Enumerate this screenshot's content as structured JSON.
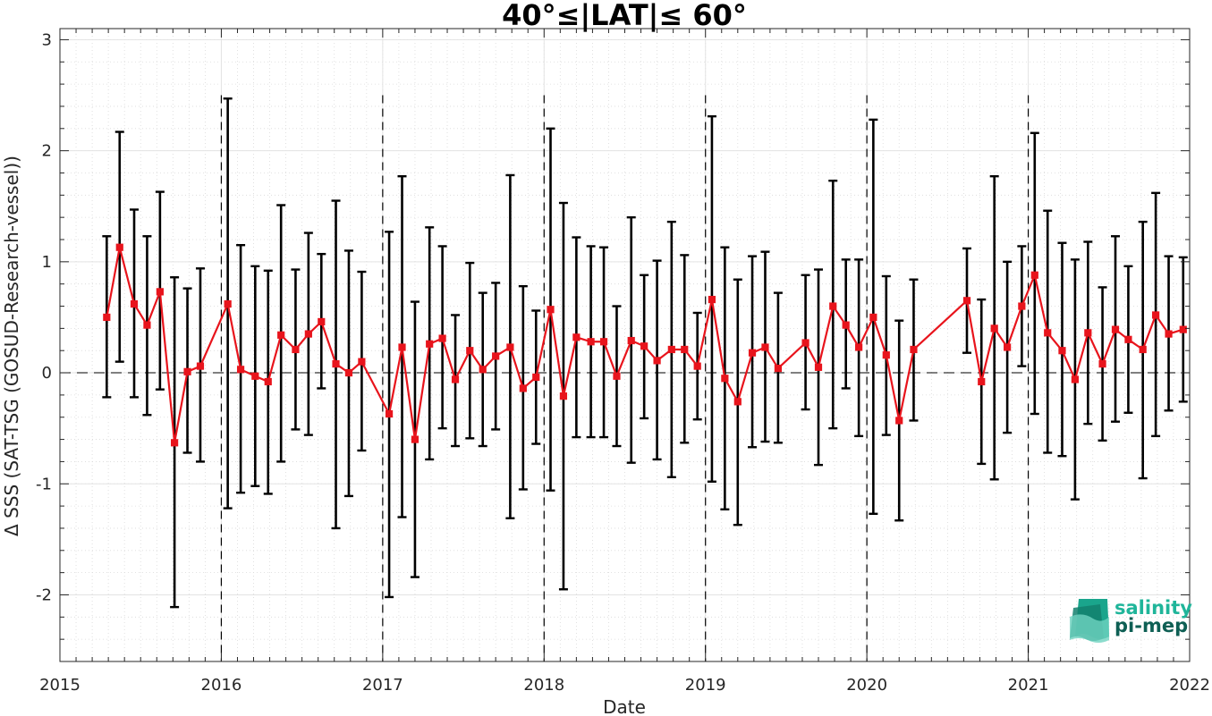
{
  "chart_data": {
    "type": "scatter",
    "title": "40°≤|LAT|≤ 60°",
    "xlabel": "Date",
    "ylabel": "Δ SSS (SAT-TSG (GOSUD-Research-vessel))",
    "xlim": [
      2015,
      2022
    ],
    "ylim": [
      -2.6,
      3.1
    ],
    "x_ticks": [
      "2015",
      "2016",
      "2017",
      "2018",
      "2019",
      "2020",
      "2021",
      "2022"
    ],
    "y_ticks": [
      "-2",
      "-1",
      "0",
      "1",
      "2",
      "3"
    ],
    "grid": true,
    "zero_line": true,
    "year_separators": [
      2016,
      2017,
      2018,
      2019,
      2020,
      2021
    ],
    "series": [
      {
        "color": "#e8141c",
        "marker": "square",
        "x": [
          2015.29,
          2015.37,
          2015.46,
          2015.54,
          2015.62,
          2015.71,
          2015.79,
          2015.87,
          2016.04,
          2016.12,
          2016.21,
          2016.29,
          2016.37,
          2016.46,
          2016.54,
          2016.62,
          2016.71,
          2016.79,
          2016.87,
          2017.04,
          2017.12,
          2017.2,
          2017.29,
          2017.37,
          2017.45,
          2017.54,
          2017.62,
          2017.7,
          2017.79,
          2017.87,
          2017.95,
          2018.04,
          2018.12,
          2018.2,
          2018.29,
          2018.37,
          2018.45,
          2018.54,
          2018.62,
          2018.7,
          2018.79,
          2018.87,
          2018.95,
          2019.04,
          2019.12,
          2019.2,
          2019.29,
          2019.37,
          2019.45,
          2019.62,
          2019.7,
          2019.79,
          2019.87,
          2019.95,
          2020.04,
          2020.12,
          2020.2,
          2020.29,
          2020.62,
          2020.71,
          2020.79,
          2020.87,
          2020.96,
          2021.04,
          2021.12,
          2021.21,
          2021.29,
          2021.37,
          2021.46,
          2021.54,
          2021.62,
          2021.71,
          2021.79,
          2021.87,
          2021.96
        ],
        "y": [
          0.5,
          1.13,
          0.62,
          0.43,
          0.73,
          -0.63,
          0.01,
          0.06,
          0.62,
          0.03,
          -0.03,
          -0.08,
          0.34,
          0.21,
          0.35,
          0.46,
          0.08,
          0.0,
          0.1,
          -0.37,
          0.23,
          -0.6,
          0.26,
          0.31,
          -0.06,
          0.2,
          0.03,
          0.15,
          0.23,
          -0.14,
          -0.04,
          0.57,
          -0.21,
          0.32,
          0.28,
          0.28,
          -0.03,
          0.29,
          0.24,
          0.11,
          0.21,
          0.21,
          0.06,
          0.66,
          -0.05,
          -0.26,
          0.18,
          0.23,
          0.04,
          0.27,
          0.05,
          0.6,
          0.43,
          0.23,
          0.5,
          0.16,
          -0.43,
          0.21,
          0.65,
          -0.08,
          0.4,
          0.23,
          0.6,
          0.88,
          0.36,
          0.2,
          -0.06,
          0.36,
          0.08,
          0.39,
          0.3,
          0.21,
          0.52,
          0.35,
          0.39
        ],
        "y_upper": [
          1.23,
          2.17,
          1.47,
          1.23,
          1.63,
          0.86,
          0.76,
          0.94,
          2.47,
          1.15,
          0.96,
          0.92,
          1.51,
          0.93,
          1.26,
          1.07,
          1.55,
          1.1,
          0.91,
          1.27,
          1.77,
          0.64,
          1.31,
          1.14,
          0.52,
          0.99,
          0.72,
          0.81,
          1.78,
          0.78,
          0.56,
          2.2,
          1.53,
          1.22,
          1.14,
          1.13,
          0.6,
          1.4,
          0.88,
          1.01,
          1.36,
          1.06,
          0.54,
          2.31,
          1.13,
          0.84,
          1.05,
          1.09,
          0.72,
          0.88,
          0.93,
          1.73,
          1.02,
          1.02,
          2.28,
          0.87,
          0.47,
          0.84,
          1.12,
          0.66,
          1.77,
          1.0,
          1.14,
          2.16,
          1.46,
          1.17,
          1.02,
          1.18,
          0.77,
          1.23,
          0.96,
          1.36,
          1.62,
          1.05,
          1.04
        ],
        "y_lower": [
          -0.22,
          0.1,
          -0.22,
          -0.38,
          -0.15,
          -2.11,
          -0.72,
          -0.8,
          -1.22,
          -1.08,
          -1.02,
          -1.09,
          -0.8,
          -0.51,
          -0.56,
          -0.14,
          -1.4,
          -1.11,
          -0.7,
          -2.02,
          -1.3,
          -1.84,
          -0.78,
          -0.5,
          -0.66,
          -0.59,
          -0.66,
          -0.51,
          -1.31,
          -1.05,
          -0.64,
          -1.06,
          -1.95,
          -0.58,
          -0.58,
          -0.58,
          -0.66,
          -0.81,
          -0.41,
          -0.78,
          -0.94,
          -0.63,
          -0.42,
          -0.98,
          -1.23,
          -1.37,
          -0.67,
          -0.62,
          -0.63,
          -0.33,
          -0.83,
          -0.5,
          -0.14,
          -0.57,
          -1.27,
          -0.56,
          -1.33,
          -0.43,
          0.18,
          -0.82,
          -0.96,
          -0.54,
          0.06,
          -0.37,
          -0.72,
          -0.75,
          -1.14,
          -0.46,
          -0.61,
          -0.44,
          -0.36,
          -0.95,
          -0.57,
          -0.34,
          -0.26
        ]
      }
    ]
  },
  "logo": {
    "line1": "salinity",
    "line2": "pi-mep"
  }
}
